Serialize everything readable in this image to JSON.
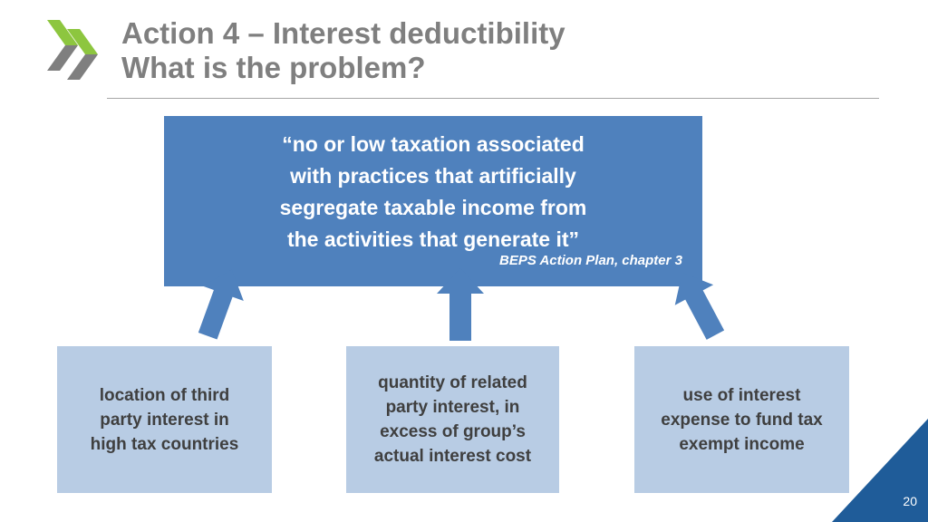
{
  "header": {
    "title_line1": "Action 4 – Interest deductibility",
    "title_line2": "What is the problem?"
  },
  "quote": {
    "text": "“no or low taxation associated\nwith practices that artificially\nsegregate taxable income from\nthe activities that generate it”",
    "source": "BEPS Action Plan, chapter 3"
  },
  "causes": [
    {
      "text": "location of third\nparty interest in\nhigh tax countries"
    },
    {
      "text": "quantity of related\nparty interest, in\nexcess of group’s\nactual interest cost"
    },
    {
      "text": "use of interest\nexpense to fund tax\nexempt income"
    }
  ],
  "footer": {
    "slide_number": "20"
  },
  "colors": {
    "accent_green": "#8dc63f",
    "logo_grey": "#7f7f7f",
    "quote_box": "#4f81bd",
    "cause_box": "#b8cce4",
    "corner": "#1f5c99"
  },
  "icons": [
    "double-chevron-logo-icon",
    "up-arrow-icon"
  ]
}
